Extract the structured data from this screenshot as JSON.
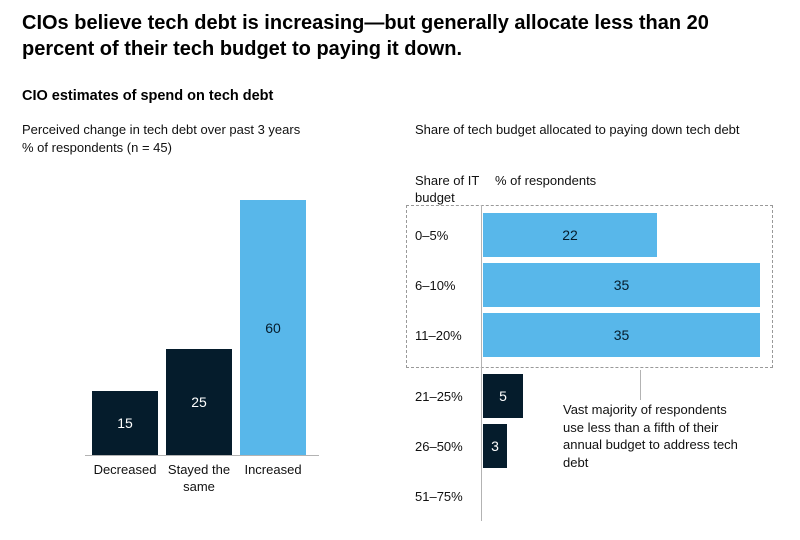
{
  "page": {
    "title": "CIOs believe tech debt is increasing—but generally allocate less than 20 percent of their tech budget to paying it down.",
    "subtitle": "CIO estimates of spend on tech debt"
  },
  "colors": {
    "dark_navy": "#051C2C",
    "light_blue": "#58B7EA",
    "axis_gray": "#b3b3b3",
    "dashed_border": "#999999"
  },
  "chart_data": [
    {
      "type": "bar",
      "orientation": "vertical",
      "title": "Perceived change in tech debt over past 3 years",
      "subtitle": "% of respondents (n = 45)",
      "categories": [
        "Decreased",
        "Stayed the same",
        "Increased"
      ],
      "values": [
        15,
        25,
        60
      ],
      "bar_colors": [
        "#051C2C",
        "#051C2C",
        "#58B7EA"
      ],
      "label_colors": [
        "#ffffff",
        "#ffffff",
        "#051C2C"
      ],
      "ylim": [
        0,
        60
      ],
      "grid": false,
      "legend": "none"
    },
    {
      "type": "bar",
      "orientation": "horizontal",
      "title": "Share of tech budget allocated to paying down tech debt",
      "col_header_left": "Share of IT budget",
      "col_header_right": "% of respondents",
      "categories": [
        "0–5%",
        "6–10%",
        "11–20%",
        "21–25%",
        "26–50%",
        "51–75%"
      ],
      "values": [
        22,
        35,
        35,
        5,
        3,
        0
      ],
      "highlight_group_indices": [
        0,
        1,
        2
      ],
      "annotation": "Vast majority of respondents use less than a fifth of their annual budget to address tech debt",
      "xlim": [
        0,
        35
      ],
      "grid": false,
      "legend": "none"
    }
  ]
}
